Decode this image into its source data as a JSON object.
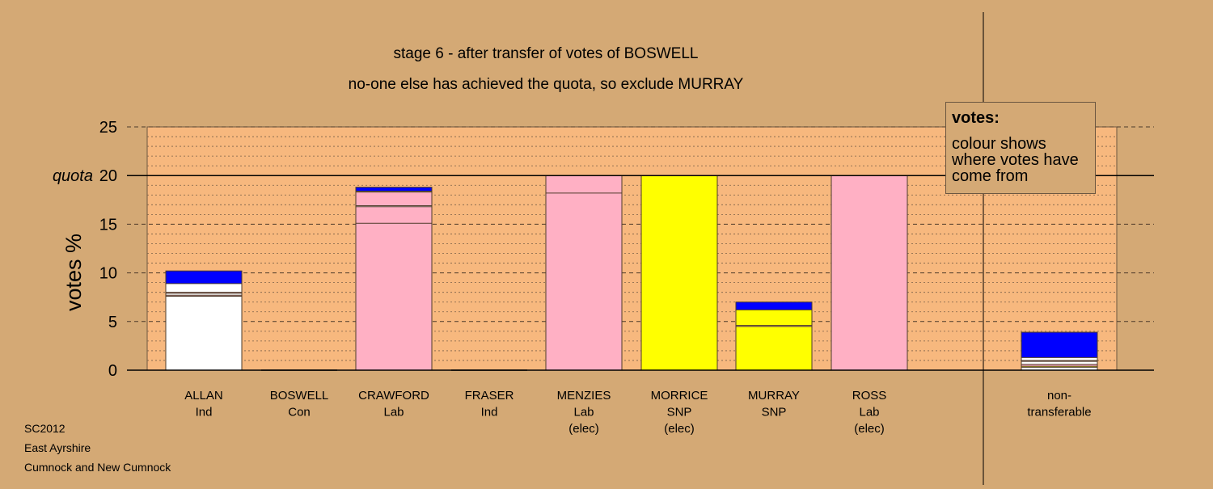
{
  "chart_data": {
    "type": "bar",
    "stacked": true,
    "title": "stage 6 - after transfer of votes of BOSWELL",
    "subtitle": "no-one else has achieved the quota, so exclude MURRAY",
    "ylabel": "votes %",
    "ylim": [
      0,
      25
    ],
    "yticks": [
      0,
      5,
      10,
      15,
      20,
      25
    ],
    "ytick_labels": [
      "0",
      "5",
      "10",
      "15",
      "20",
      "25"
    ],
    "quota": 20,
    "quota_label": "quota",
    "grid": "dashed major, dotted minor",
    "colors": {
      "Ind": "#ffffff",
      "Lab": "#ffb0c4",
      "SNP": "#ffff00",
      "Con": "#0000ff",
      "background": "#d4a975",
      "plot_area": "#f7b87e"
    },
    "candidates": [
      {
        "name": "ALLAN",
        "party": "Ind",
        "status": "",
        "segments": [
          {
            "from": "Ind",
            "value": 7.6
          },
          {
            "from": "Lab",
            "value": 0.1
          },
          {
            "from": "Ind",
            "value": 0.2
          },
          {
            "from": "Lab",
            "value": 0.1
          },
          {
            "from": "Ind",
            "value": 0.9
          },
          {
            "from": "Con",
            "value": 1.3
          }
        ]
      },
      {
        "name": "BOSWELL",
        "party": "Con",
        "status": "",
        "segments": []
      },
      {
        "name": "CRAWFORD",
        "party": "Lab",
        "status": "",
        "segments": [
          {
            "from": "Lab",
            "value": 15.1
          },
          {
            "from": "Lab",
            "value": 1.7
          },
          {
            "from": "Ind",
            "value": 0.1
          },
          {
            "from": "Lab",
            "value": 1.4
          },
          {
            "from": "Ind",
            "value": 0.1
          },
          {
            "from": "Con",
            "value": 0.4
          }
        ]
      },
      {
        "name": "FRASER",
        "party": "Ind",
        "status": "",
        "segments": []
      },
      {
        "name": "MENZIES",
        "party": "Lab",
        "status": "(elec)",
        "segments": [
          {
            "from": "Lab",
            "value": 18.2
          },
          {
            "from": "Lab",
            "value": 1.8
          }
        ]
      },
      {
        "name": "MORRICE",
        "party": "SNP",
        "status": "(elec)",
        "segments": [
          {
            "from": "SNP",
            "value": 20.0
          }
        ]
      },
      {
        "name": "MURRAY",
        "party": "SNP",
        "status": "",
        "segments": [
          {
            "from": "SNP",
            "value": 4.5
          },
          {
            "from": "Lab",
            "value": 0.1
          },
          {
            "from": "SNP",
            "value": 1.6
          },
          {
            "from": "Con",
            "value": 0.8
          }
        ]
      },
      {
        "name": "ROSS",
        "party": "Lab",
        "status": "(elec)",
        "segments": [
          {
            "from": "Lab",
            "value": 20.0
          }
        ]
      },
      {
        "name": "non-transferable",
        "label_lines": [
          "non-",
          "transferable"
        ],
        "party": "",
        "status": "",
        "segments": [
          {
            "from": "Ind",
            "value": 0.3
          },
          {
            "from": "SNP",
            "value": 0.1
          },
          {
            "from": "Lab",
            "value": 0.2
          },
          {
            "from": "Ind",
            "value": 0.3
          },
          {
            "from": "Lab",
            "value": 0.1
          },
          {
            "from": "Ind",
            "value": 0.3
          },
          {
            "from": "Con",
            "value": 2.6
          }
        ]
      }
    ]
  },
  "legend": {
    "title": "votes:",
    "text": "colour shows where votes have come from"
  },
  "footer": {
    "line1": "SC2012",
    "line2": "East Ayrshire",
    "line3": "Cumnock and New Cumnock"
  }
}
